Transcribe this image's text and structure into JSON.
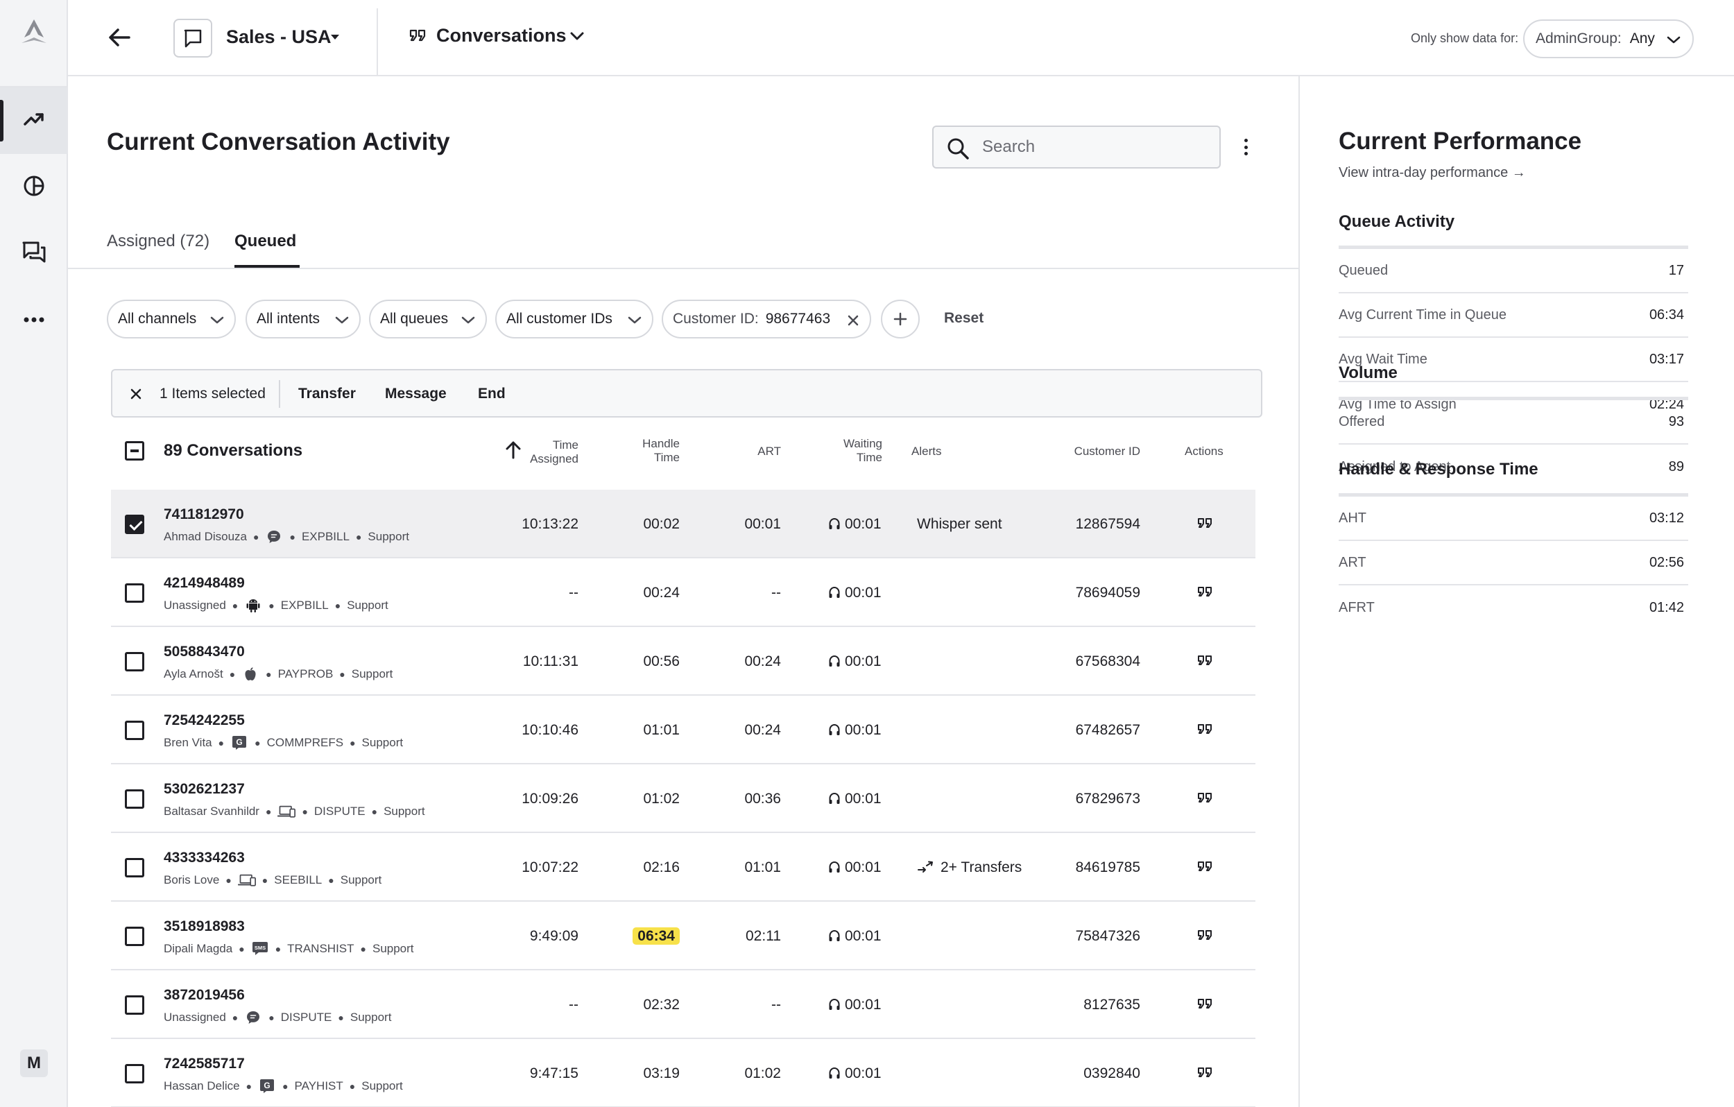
{
  "topbar": {
    "workspace": "Sales - USA",
    "view": "Conversations",
    "filter_label": "Only show data for:",
    "admin_group_key": "AdminGroup:",
    "admin_group_value": "Any"
  },
  "rail": {
    "avatar_initial": "M"
  },
  "main": {
    "title": "Current Conversation Activity",
    "search_placeholder": "Search",
    "tabs": [
      {
        "label": "Assigned (72)",
        "active": false
      },
      {
        "label": "Queued",
        "active": true
      }
    ],
    "filters": {
      "channels": "All channels",
      "intents": "All intents",
      "queues": "All queues",
      "customer_ids": "All customer IDs",
      "customer_id_key": "Customer ID:",
      "customer_id_value": "98677463",
      "reset": "Reset"
    },
    "bulk": {
      "selected": "1 Items selected",
      "transfer": "Transfer",
      "message": "Message",
      "end": "End"
    },
    "table": {
      "count_label": "89 Conversations",
      "headers": {
        "time_assigned_1": "Time",
        "time_assigned_2": "Assigned",
        "handle_time_1": "Handle",
        "handle_time_2": "Time",
        "art": "ART",
        "waiting_time_1": "Waiting",
        "waiting_time_2": "Time",
        "alerts": "Alerts",
        "customer_id": "Customer ID",
        "actions": "Actions"
      },
      "rows": [
        {
          "id": "7411812970",
          "agent": "Ahmad Disouza",
          "channel": "chat",
          "intent": "EXPBILL",
          "queue": "Support",
          "time_assigned": "10:13:22",
          "handle_time": "00:02",
          "highlight": false,
          "art": "00:01",
          "waiting": "00:01",
          "alert": "Whisper sent",
          "alert_icon": "",
          "customer_id": "12867594",
          "checked": true
        },
        {
          "id": "4214948489",
          "agent": "Unassigned",
          "channel": "android",
          "intent": "EXPBILL",
          "queue": "Support",
          "time_assigned": "--",
          "handle_time": "00:24",
          "highlight": false,
          "art": "--",
          "waiting": "00:01",
          "alert": "",
          "alert_icon": "",
          "customer_id": "78694059",
          "checked": false
        },
        {
          "id": "5058843470",
          "agent": "Ayla Arnošt",
          "channel": "apple",
          "intent": "PAYPROB",
          "queue": "Support",
          "time_assigned": "10:11:31",
          "handle_time": "00:56",
          "highlight": false,
          "art": "00:24",
          "waiting": "00:01",
          "alert": "",
          "alert_icon": "",
          "customer_id": "67568304",
          "checked": false
        },
        {
          "id": "7254242255",
          "agent": "Bren Vita",
          "channel": "google",
          "intent": "COMMPREFS",
          "queue": "Support",
          "time_assigned": "10:10:46",
          "handle_time": "01:01",
          "highlight": false,
          "art": "00:24",
          "waiting": "00:01",
          "alert": "",
          "alert_icon": "",
          "customer_id": "67482657",
          "checked": false
        },
        {
          "id": "5302621237",
          "agent": "Baltasar Svanhildr",
          "channel": "web",
          "intent": "DISPUTE",
          "queue": "Support",
          "time_assigned": "10:09:26",
          "handle_time": "01:02",
          "highlight": false,
          "art": "00:36",
          "waiting": "00:01",
          "alert": "",
          "alert_icon": "",
          "customer_id": "67829673",
          "checked": false
        },
        {
          "id": "4333334263",
          "agent": "Boris Love",
          "channel": "web",
          "intent": "SEEBILL",
          "queue": "Support",
          "time_assigned": "10:07:22",
          "handle_time": "02:16",
          "highlight": false,
          "art": "01:01",
          "waiting": "00:01",
          "alert": "2+ Transfers",
          "alert_icon": "transfer-icon",
          "customer_id": "84619785",
          "checked": false
        },
        {
          "id": "3518918983",
          "agent": "Dipali Magda",
          "channel": "sms",
          "intent": "TRANSHIST",
          "queue": "Support",
          "time_assigned": "9:49:09",
          "handle_time": "06:34",
          "highlight": true,
          "art": "02:11",
          "waiting": "00:01",
          "alert": "",
          "alert_icon": "",
          "customer_id": "75847326",
          "checked": false
        },
        {
          "id": "3872019456",
          "agent": "Unassigned",
          "channel": "chat",
          "intent": "DISPUTE",
          "queue": "Support",
          "time_assigned": "--",
          "handle_time": "02:32",
          "highlight": false,
          "art": "--",
          "waiting": "00:01",
          "alert": "",
          "alert_icon": "",
          "customer_id": "8127635",
          "checked": false
        },
        {
          "id": "7242585717",
          "agent": "Hassan Delice",
          "channel": "google",
          "intent": "PAYHIST",
          "queue": "Support",
          "time_assigned": "9:47:15",
          "handle_time": "03:19",
          "highlight": false,
          "art": "01:02",
          "waiting": "00:01",
          "alert": "",
          "alert_icon": "",
          "customer_id": "0392840",
          "checked": false
        }
      ]
    }
  },
  "performance": {
    "title": "Current Performance",
    "link": "View intra-day performance →",
    "sections": [
      {
        "title": "Queue Activity",
        "rows": [
          {
            "label": "Queued",
            "value": "17"
          },
          {
            "label": "Avg Current Time in Queue",
            "value": "06:34"
          },
          {
            "label": "Avg Wait Time",
            "value": "03:17"
          },
          {
            "label": "Avg Time to Assign",
            "value": "02:24"
          }
        ]
      },
      {
        "title": "Volume",
        "rows": [
          {
            "label": "Offered",
            "value": "93"
          },
          {
            "label": "Assigned to Agent",
            "value": "89"
          }
        ]
      },
      {
        "title": "Handle & Response Time",
        "rows": [
          {
            "label": "AHT",
            "value": "03:12"
          },
          {
            "label": "ART",
            "value": "02:56"
          },
          {
            "label": "AFRT",
            "value": "01:42"
          }
        ]
      }
    ]
  },
  "colors": {
    "highlight": "#f7e14a",
    "text": "#1f1f24",
    "muted": "#4a4b52",
    "border": "#e3e4e8"
  }
}
